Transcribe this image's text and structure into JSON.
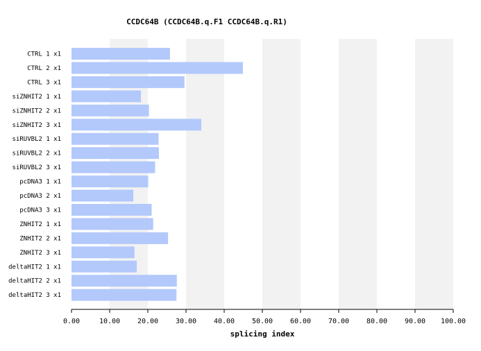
{
  "chart_data": {
    "type": "bar",
    "orientation": "horizontal",
    "title": "CCDC64B (CCDC64B.q.F1  CCDC64B.q.R1)",
    "xlabel": "splicing index",
    "ylabel": "",
    "xlim": [
      0,
      100
    ],
    "xticks": [
      "0.00",
      "10.00",
      "20.00",
      "30.00",
      "40.00",
      "50.00",
      "60.00",
      "70.00",
      "80.00",
      "90.00",
      "100.00"
    ],
    "grid": "alternating vertical bands",
    "categories": [
      "CTRL 1 x1",
      "CTRL 2 x1",
      "CTRL 3 x1",
      "siZNHIT2 1 x1",
      "siZNHIT2 2 x1",
      "siZNHIT2 3 x1",
      "siRUVBL2 1 x1",
      "siRUVBL2 2 x1",
      "siRUVBL2 3 x1",
      "pcDNA3 1 x1",
      "pcDNA3 2 x1",
      "pcDNA3 3 x1",
      "ZNHIT2 1 x1",
      "ZNHIT2 2 x1",
      "ZNHIT2 3 x1",
      "deltaHIT2 1 x1",
      "deltaHIT2 2 x1",
      "deltaHIT2 3 x1"
    ],
    "values": [
      25.8,
      44.9,
      29.6,
      18.2,
      20.3,
      34.0,
      22.8,
      22.9,
      21.9,
      20.1,
      16.2,
      21.0,
      21.4,
      25.3,
      16.5,
      17.1,
      27.6,
      27.5
    ],
    "bar_color": "#b3c9fc",
    "band_color": "#f2f2f2"
  }
}
